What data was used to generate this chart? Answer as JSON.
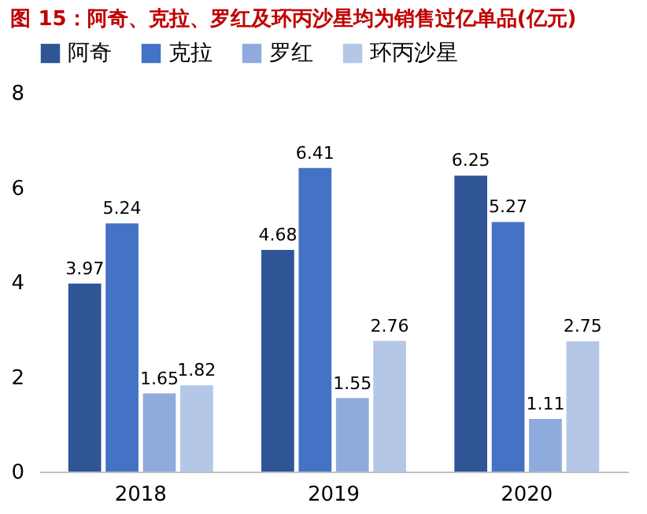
{
  "chart_data": {
    "type": "bar",
    "title": "图 15：阿奇、克拉、罗红及环丙沙星均为销售过亿单品(亿元)",
    "categories": [
      "2018",
      "2019",
      "2020"
    ],
    "series": [
      {
        "name": "阿奇",
        "color": "#2f5597",
        "values": [
          3.97,
          4.68,
          6.25
        ]
      },
      {
        "name": "克拉",
        "color": "#4472c4",
        "values": [
          5.24,
          6.41,
          5.27
        ]
      },
      {
        "name": "罗红",
        "color": "#8faadc",
        "values": [
          1.65,
          1.55,
          1.11
        ]
      },
      {
        "name": "环丙沙星",
        "color": "#b4c7e7",
        "values": [
          1.82,
          2.76,
          2.75
        ]
      }
    ],
    "ylim": [
      0,
      8
    ],
    "yticks": [
      0,
      2,
      4,
      6,
      8
    ],
    "grid": false,
    "legend": "top",
    "data_labels": true
  }
}
